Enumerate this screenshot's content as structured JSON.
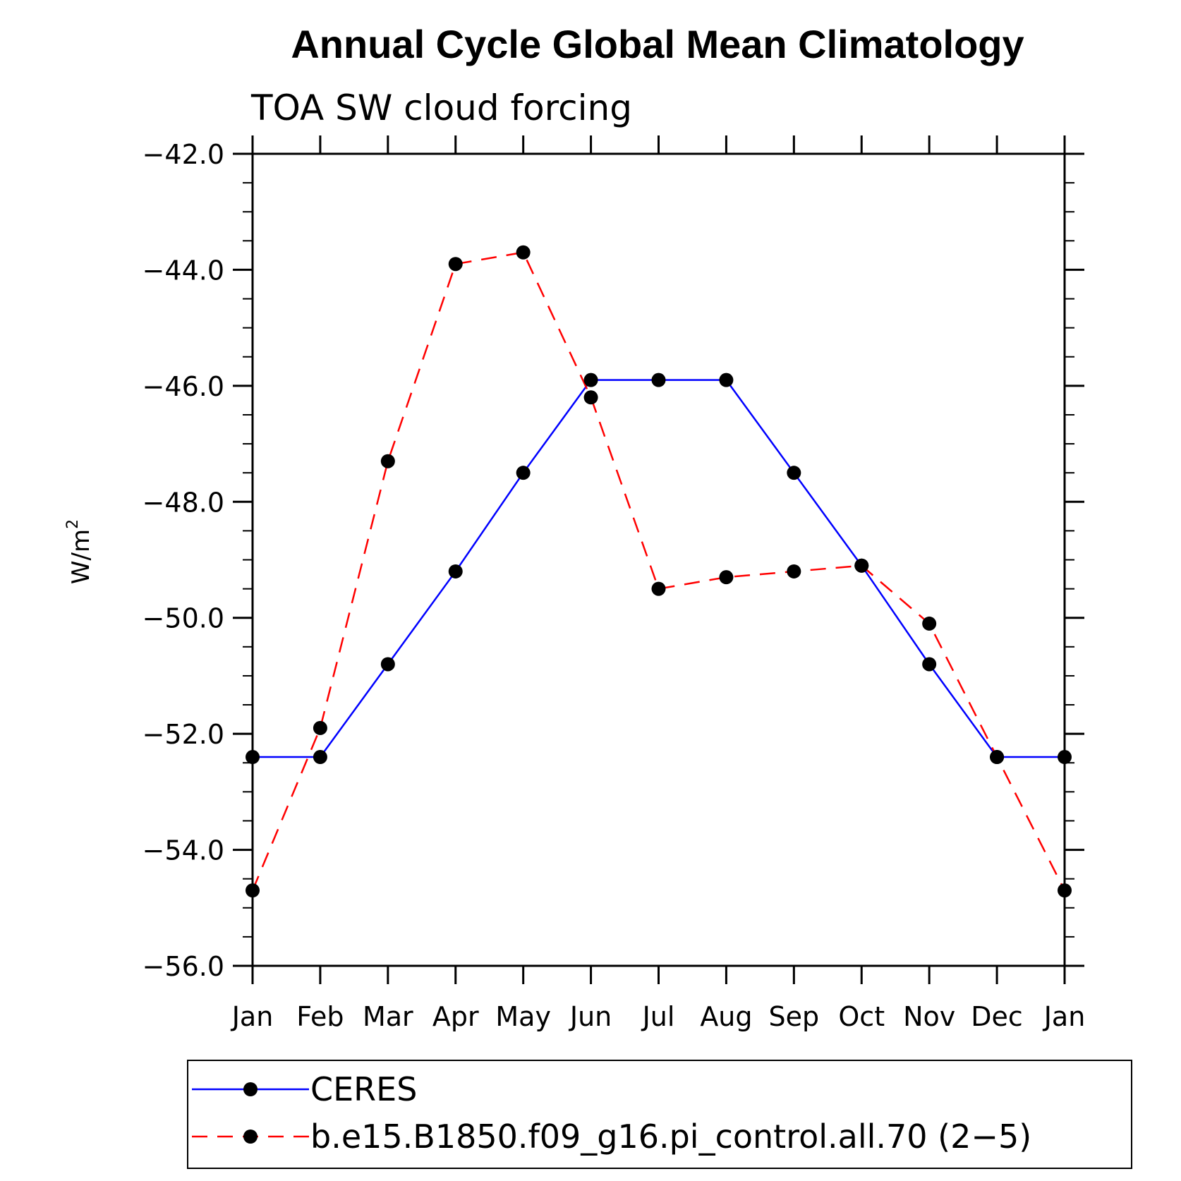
{
  "chart_data": {
    "type": "line",
    "title": "Annual Cycle Global Mean Climatology",
    "subtitle": "TOA SW cloud forcing",
    "ylabel": "W/m",
    "ylabel_sup": "2",
    "xlabel": "",
    "categories": [
      "Jan",
      "Feb",
      "Mar",
      "Apr",
      "May",
      "Jun",
      "Jul",
      "Aug",
      "Sep",
      "Oct",
      "Nov",
      "Dec",
      "Jan"
    ],
    "ylim": [
      -56.0,
      -42.0
    ],
    "yticks": [
      -42.0,
      -44.0,
      -46.0,
      -48.0,
      -50.0,
      -52.0,
      -54.0,
      -56.0
    ],
    "ytick_labels": [
      "−42.0",
      "−44.0",
      "−46.0",
      "−48.0",
      "−50.0",
      "−52.0",
      "−54.0",
      "−56.0"
    ],
    "grid": false,
    "legend_position": "bottom",
    "series": [
      {
        "name": "CERES",
        "color": "#0000ff",
        "dash": "solid",
        "marker": "circle",
        "values": [
          -52.4,
          -52.4,
          -50.8,
          -49.2,
          -47.5,
          -45.9,
          -45.9,
          -45.9,
          -47.5,
          -49.1,
          -50.8,
          -52.4,
          -52.4
        ]
      },
      {
        "name": "b.e15.B1850.f09_g16.pi_control.all.70 (2−5)",
        "color": "#ff0000",
        "dash": "dashed",
        "marker": "circle",
        "values": [
          -54.7,
          -51.9,
          -47.3,
          -43.9,
          -43.7,
          -46.2,
          -49.5,
          -49.3,
          -49.2,
          -49.1,
          -50.1,
          -52.4,
          -54.7
        ]
      }
    ]
  }
}
